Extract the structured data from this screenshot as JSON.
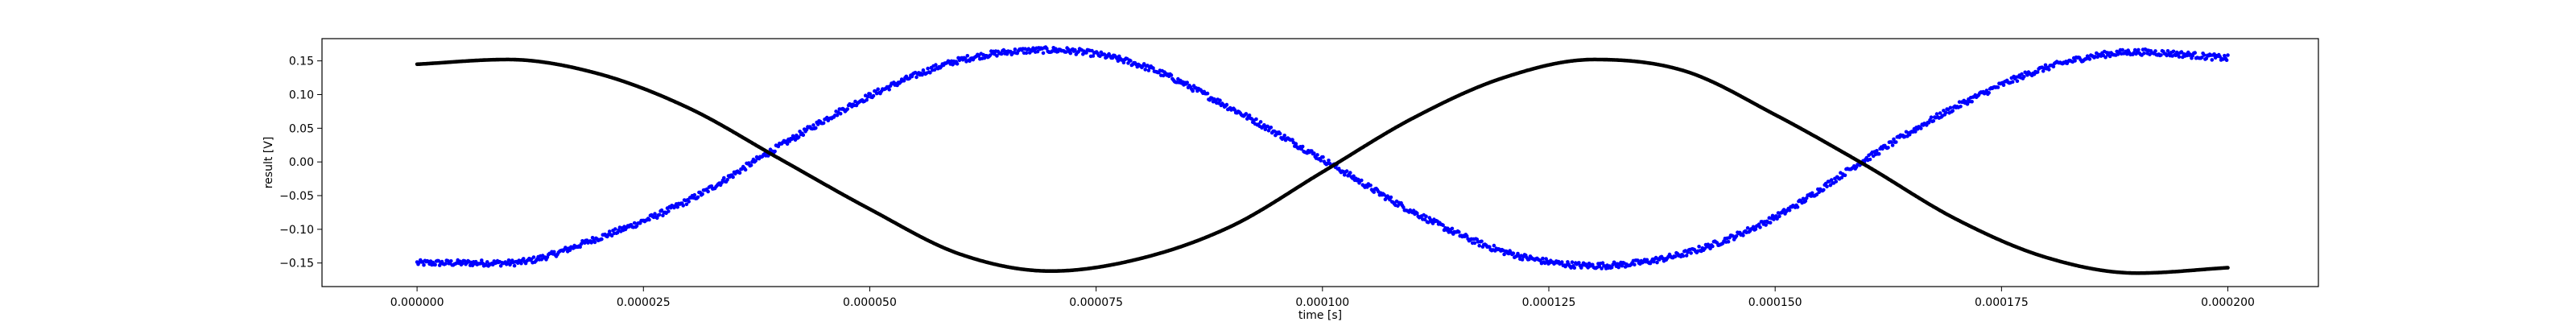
{
  "chart_data": {
    "type": "scatter",
    "title": "",
    "xlabel": "time [s]",
    "ylabel": "result [V]",
    "xlim": [
      -1.05e-05,
      0.00021
    ],
    "ylim": [
      -0.185,
      0.183
    ],
    "grid": false,
    "legend": "none",
    "x_ticks": [
      0.0,
      2.5e-05,
      5e-05,
      7.5e-05,
      0.0001,
      0.000125,
      0.00015,
      0.000175,
      0.0002
    ],
    "x_tick_labels": [
      "0.000000",
      "0.000025",
      "0.000050",
      "0.000075",
      "0.000100",
      "0.000125",
      "0.000150",
      "0.000175",
      "0.000200"
    ],
    "y_ticks": [
      -0.15,
      -0.1,
      -0.05,
      0.0,
      0.05,
      0.1,
      0.15
    ],
    "y_tick_labels": [
      "−0.15",
      "−0.10",
      "−0.05",
      "0.00",
      "0.05",
      "0.10",
      "0.15"
    ],
    "series": [
      {
        "color": "#0000ff",
        "noisy": true,
        "x": [
          0.0,
          1e-05,
          2e-05,
          3e-05,
          4e-05,
          5e-05,
          6e-05,
          7e-05,
          8e-05,
          9e-05,
          0.0001,
          0.00011,
          0.00012,
          0.00013,
          0.00014,
          0.00015,
          0.00016,
          0.00017,
          0.00018,
          0.00019,
          0.0002
        ],
        "y": [
          -0.15,
          -0.15,
          -0.113,
          -0.057,
          0.023,
          0.098,
          0.151,
          0.166,
          0.143,
          0.079,
          0.004,
          -0.074,
          -0.133,
          -0.154,
          -0.136,
          -0.082,
          0.004,
          0.082,
          0.14,
          0.163,
          0.154
        ]
      },
      {
        "color": "#000000",
        "noisy": false,
        "x": [
          0.0,
          1e-05,
          2e-05,
          3e-05,
          4e-05,
          5e-05,
          6e-05,
          7e-05,
          8e-05,
          9e-05,
          0.0001,
          0.00011,
          0.00012,
          0.00013,
          0.00014,
          0.00015,
          0.00016,
          0.00017,
          0.00018,
          0.00019,
          0.0002
        ],
        "y": [
          0.145,
          0.152,
          0.131,
          0.08,
          0.005,
          -0.07,
          -0.137,
          -0.162,
          -0.143,
          -0.095,
          -0.015,
          0.065,
          0.125,
          0.152,
          0.135,
          0.07,
          -0.005,
          -0.085,
          -0.142,
          -0.165,
          -0.157
        ]
      }
    ]
  }
}
